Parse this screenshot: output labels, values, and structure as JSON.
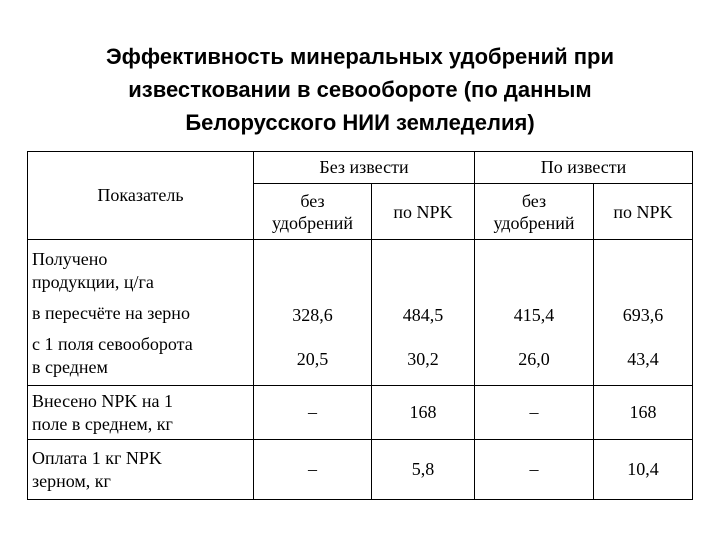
{
  "title": {
    "line1": "Эффективность минеральных удобрений при",
    "line2": "известковании в севообороте (по данным",
    "line3": "Белорусского НИИ земледелия)"
  },
  "table": {
    "header_indicator": "Показатель",
    "group_no_lime": "Без извести",
    "group_lime": "По извести",
    "sub_no_fert_line1": "без",
    "sub_no_fert_line2": "удобрений",
    "sub_npk": "по NPK",
    "rows": {
      "yield": {
        "label_line1": "Получено",
        "label_line2": "продукции, ц/га",
        "grain_label": "в пересчёте на зерно",
        "avg_label_line1": "с 1 поля севооборота",
        "avg_label_line2": "в среднем",
        "grain_values": [
          "328,6",
          "484,5",
          "415,4",
          "693,6"
        ],
        "avg_values": [
          "20,5",
          "30,2",
          "26,0",
          "43,4"
        ]
      },
      "npk_applied": {
        "label_line1": "Внесено NPK на 1",
        "label_line2": "поле в среднем, кг",
        "values": [
          "–",
          "168",
          "–",
          "168"
        ]
      },
      "npk_payback": {
        "label_line1": "Оплата 1 кг NPK",
        "label_line2": "зерном, кг",
        "values": [
          "–",
          "5,8",
          "–",
          "10,4"
        ]
      }
    }
  }
}
